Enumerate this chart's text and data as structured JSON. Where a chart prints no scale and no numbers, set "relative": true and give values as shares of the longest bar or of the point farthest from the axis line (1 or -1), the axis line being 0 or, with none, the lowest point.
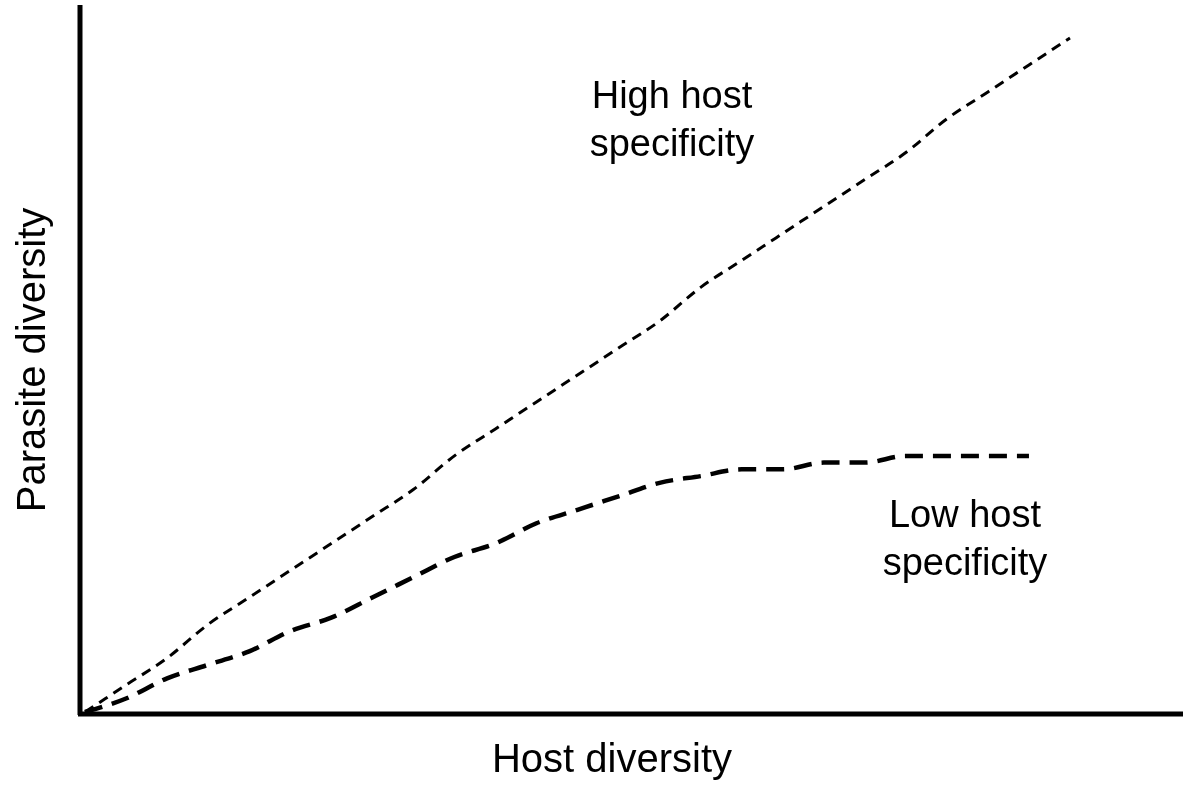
{
  "chart_data": {
    "type": "line",
    "relative": true,
    "xlabel": "Host diversity",
    "ylabel": "Parasite diversity",
    "legend": false,
    "marker": "none",
    "line_style": "dashed",
    "categories": [
      null,
      null,
      null,
      null,
      null,
      null,
      null,
      null,
      null,
      null,
      null,
      null,
      null,
      null,
      null,
      null,
      null,
      null,
      null,
      null,
      null,
      null,
      null,
      null,
      null
    ],
    "series": [
      {
        "name": "High host specificity",
        "color": "#000000",
        "values": [
          0,
          0.04,
          0.08,
          0.13,
          0.17,
          0.21,
          0.25,
          0.29,
          0.33,
          0.38,
          0.42,
          0.46,
          0.5,
          0.54,
          0.58,
          0.63,
          0.67,
          0.71,
          0.75,
          0.79,
          0.83,
          0.88,
          0.92,
          0.96,
          1
        ]
      },
      {
        "name": "Low host specificity",
        "color": "#000000",
        "values": [
          0,
          0.02,
          0.05,
          0.07,
          0.09,
          0.12,
          0.14,
          0.17,
          0.2,
          0.23,
          0.25,
          0.28,
          0.3,
          0.32,
          0.34,
          0.35,
          0.36,
          0.36,
          0.37,
          0.37,
          0.38,
          0.38,
          0.38,
          0.38,
          null
        ]
      }
    ]
  }
}
